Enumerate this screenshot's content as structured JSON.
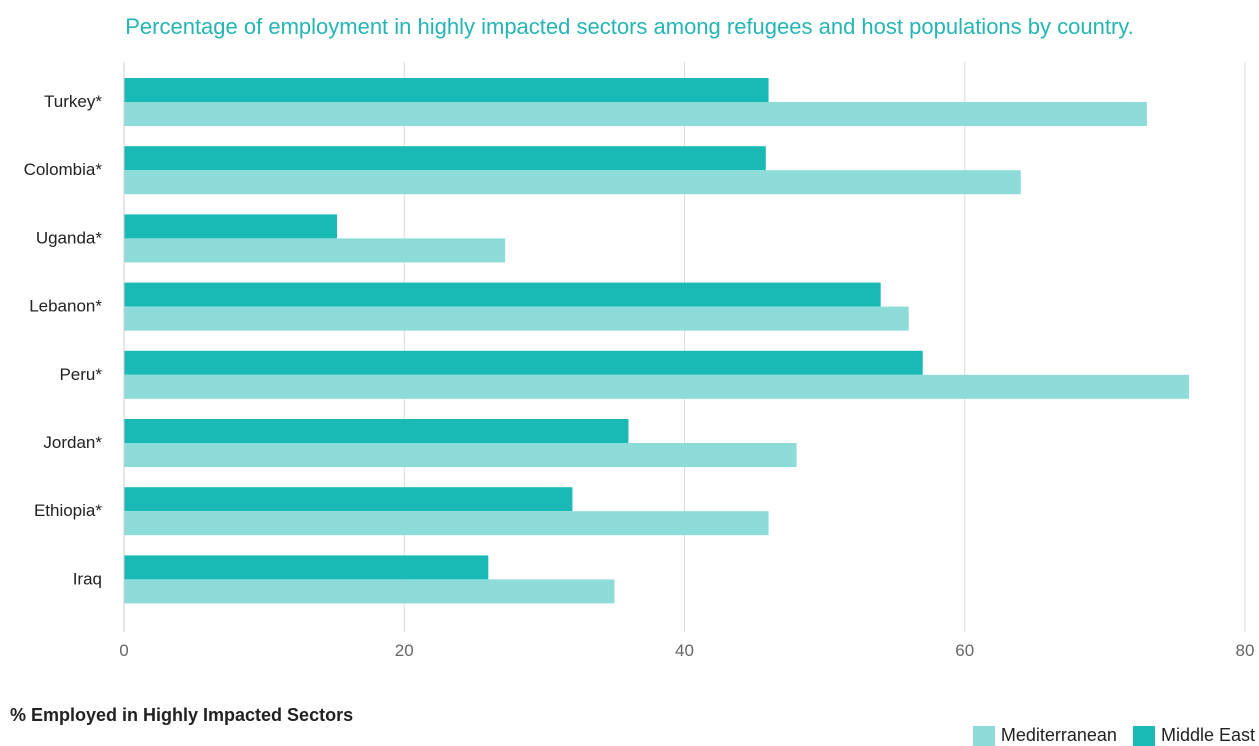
{
  "colors": {
    "mediterranean": "#8ddcd9",
    "middle_east": "#19bab6",
    "title": "#25b5b3",
    "grid": "#dcdcdc"
  },
  "chart_data": {
    "type": "bar",
    "orientation": "horizontal",
    "title": "Percentage of employment in highly impacted sectors among refugees and host populations by country.",
    "xlabel": "% Employed in Highly Impacted Sectors",
    "ylabel": "",
    "categories": [
      "Turkey*",
      "Colombia*",
      "Uganda*",
      "Lebanon*",
      "Peru*",
      "Jordan*",
      "Ethiopia*",
      "Iraq"
    ],
    "series": [
      {
        "name": "Middle East",
        "color": "#19bab6",
        "values": [
          46,
          45.8,
          15.2,
          54,
          57,
          36,
          32,
          26
        ]
      },
      {
        "name": "Mediterranean",
        "color": "#8ddcd9",
        "values": [
          73,
          64,
          27.2,
          56,
          76,
          48,
          46,
          35
        ]
      }
    ],
    "xlim": [
      0,
      80
    ],
    "xticks": [
      "0",
      "20",
      "40",
      "60",
      "80"
    ],
    "grid": true,
    "legend": {
      "position": "bottom-right",
      "entries": [
        "Mediterranean",
        "Middle East"
      ]
    }
  }
}
